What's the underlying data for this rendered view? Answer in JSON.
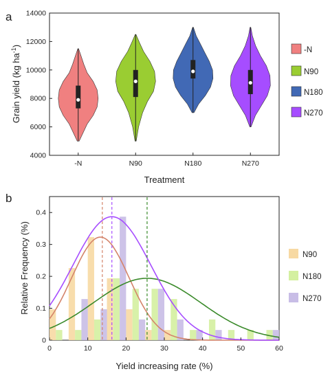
{
  "chart_data": [
    {
      "panel": "a",
      "type": "violin",
      "xlabel": "Treatment",
      "ylabel_main": "Grain yield (kg ha",
      "ylabel_sup": "-1",
      "ylabel_close": ")",
      "ylim": [
        4000,
        14000
      ],
      "yticks": [
        4000,
        6000,
        8000,
        10000,
        12000,
        14000
      ],
      "categories": [
        "-N",
        "N90",
        "N180",
        "N270"
      ],
      "series": [
        {
          "name": "-N",
          "color": "#F08080",
          "min": 5000,
          "max": 11500,
          "q1": 7300,
          "q3": 8900,
          "median": 7900,
          "density": [
            [
              5000,
              0.05
            ],
            [
              5600,
              0.25
            ],
            [
              6200,
              0.45
            ],
            [
              6800,
              0.75
            ],
            [
              7400,
              0.95
            ],
            [
              8000,
              1.0
            ],
            [
              8600,
              0.95
            ],
            [
              9200,
              0.75
            ],
            [
              9800,
              0.45
            ],
            [
              10400,
              0.28
            ],
            [
              11000,
              0.14
            ],
            [
              11500,
              0.02
            ]
          ]
        },
        {
          "name": "N90",
          "color": "#9ACD32",
          "min": 5000,
          "max": 12500,
          "q1": 8100,
          "q3": 10000,
          "median": 9200,
          "density": [
            [
              5000,
              0.03
            ],
            [
              6000,
              0.15
            ],
            [
              7000,
              0.35
            ],
            [
              7800,
              0.6
            ],
            [
              8500,
              0.9
            ],
            [
              9200,
              1.0
            ],
            [
              9900,
              0.95
            ],
            [
              10600,
              0.72
            ],
            [
              11300,
              0.4
            ],
            [
              11900,
              0.2
            ],
            [
              12500,
              0.02
            ]
          ]
        },
        {
          "name": "N180",
          "color": "#4169B5",
          "min": 7000,
          "max": 13000,
          "q1": 9400,
          "q3": 10700,
          "median": 9900,
          "density": [
            [
              7000,
              0.05
            ],
            [
              7600,
              0.28
            ],
            [
              8200,
              0.62
            ],
            [
              8800,
              0.88
            ],
            [
              9400,
              1.0
            ],
            [
              10000,
              0.98
            ],
            [
              10600,
              0.82
            ],
            [
              11200,
              0.6
            ],
            [
              11800,
              0.38
            ],
            [
              12400,
              0.16
            ],
            [
              13000,
              0.02
            ]
          ]
        },
        {
          "name": "N270",
          "color": "#A64DFF",
          "min": 6000,
          "max": 13000,
          "q1": 8300,
          "q3": 10000,
          "median": 9100,
          "density": [
            [
              6000,
              0.03
            ],
            [
              6800,
              0.25
            ],
            [
              7500,
              0.55
            ],
            [
              8200,
              0.85
            ],
            [
              8900,
              1.0
            ],
            [
              9600,
              0.98
            ],
            [
              10300,
              0.8
            ],
            [
              11000,
              0.5
            ],
            [
              11700,
              0.26
            ],
            [
              12400,
              0.1
            ],
            [
              13000,
              0.02
            ]
          ]
        }
      ]
    },
    {
      "panel": "b",
      "type": "bar+line",
      "xlabel": "Yield increasing rate (%)",
      "ylabel": "Relative Frequency (%)",
      "xlim": [
        0,
        60
      ],
      "ylim": [
        0,
        0.45
      ],
      "xticks": [
        0,
        10,
        20,
        30,
        40,
        50,
        60
      ],
      "yticks": [
        0.0,
        0.1,
        0.2,
        0.3,
        0.4
      ],
      "series": [
        {
          "name": "N90",
          "color": "#F7D9A3",
          "line_color": "#D4846A",
          "mean": 13.8,
          "bars": [
            [
              0,
              0.097
            ],
            [
              5,
              0.226
            ],
            [
              10,
              0.323
            ],
            [
              15,
              0.194
            ],
            [
              20,
              0.097
            ],
            [
              25,
              0.032
            ],
            [
              30,
              0.032
            ],
            [
              35,
              0.0
            ]
          ],
          "curve": {
            "peak": 0.323,
            "mu": 13.3,
            "sigma": 7.5
          }
        },
        {
          "name": "N180",
          "color": "#D4F0A0",
          "line_color": "#3A8A2A",
          "mean": 25.5,
          "bars": [
            [
              0,
              0.032
            ],
            [
              5,
              0.032
            ],
            [
              10,
              0.065
            ],
            [
              15,
              0.194
            ],
            [
              20,
              0.161
            ],
            [
              25,
              0.161
            ],
            [
              30,
              0.129
            ],
            [
              35,
              0.032
            ],
            [
              40,
              0.065
            ],
            [
              45,
              0.032
            ],
            [
              50,
              0.032
            ],
            [
              55,
              0.032
            ]
          ],
          "curve": {
            "peak": 0.194,
            "mu": 25.5,
            "sigma": 14.0
          }
        },
        {
          "name": "N270",
          "color": "#C8BDE6",
          "line_color": "#A64DFF",
          "mean": 16.3,
          "bars": [
            [
              0,
              0.0
            ],
            [
              5,
              0.129
            ],
            [
              10,
              0.097
            ],
            [
              15,
              0.387
            ],
            [
              20,
              0.065
            ],
            [
              25,
              0.161
            ],
            [
              30,
              0.065
            ],
            [
              35,
              0.032
            ],
            [
              40,
              0.032
            ],
            [
              45,
              0.0
            ],
            [
              50,
              0.0
            ],
            [
              55,
              0.032
            ]
          ],
          "curve": {
            "peak": 0.387,
            "mu": 16.3,
            "sigma": 10.2
          }
        }
      ]
    }
  ]
}
